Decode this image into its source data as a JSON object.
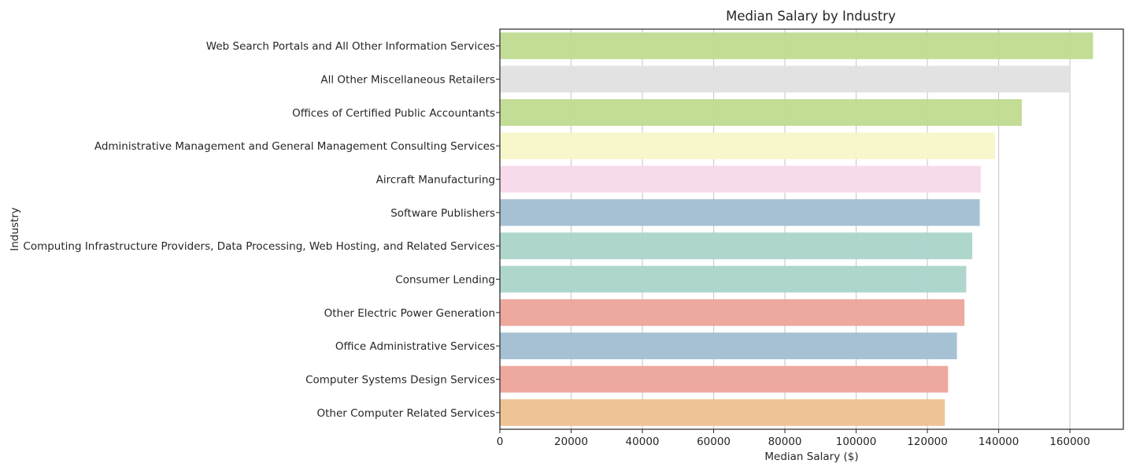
{
  "chart_data": {
    "type": "bar",
    "orientation": "horizontal",
    "title": "Median Salary by Industry",
    "xlabel": "Median Salary ($)",
    "ylabel": "Industry",
    "xlim": [
      0,
      175000
    ],
    "xticks": [
      0,
      20000,
      40000,
      60000,
      80000,
      100000,
      120000,
      140000,
      160000
    ],
    "xtick_labels": [
      "0",
      "20000",
      "40000",
      "60000",
      "80000",
      "100000",
      "120000",
      "140000",
      "160000"
    ],
    "grid": "x",
    "categories": [
      "Web Search Portals and All Other Information Services",
      "All Other Miscellaneous Retailers",
      "Offices of Certified Public Accountants",
      "Administrative Management and General Management Consulting Services",
      "Aircraft Manufacturing",
      "Software Publishers",
      "Computing Infrastructure Providers, Data Processing, Web Hosting, and Related Services",
      "Consumer Lending",
      "Other Electric Power Generation",
      "Office Administrative Services",
      "Computer Systems Design Services",
      "Other Computer Related Services"
    ],
    "values": [
      166500,
      160000,
      146500,
      139000,
      135000,
      134700,
      132600,
      130900,
      130400,
      128300,
      125800,
      124900
    ],
    "colors": [
      "#c0da90",
      "#e0e0e0",
      "#c0da90",
      "#f8f7c8",
      "#f7d9ea",
      "#a1bed2",
      "#aad4ca",
      "#aad4ca",
      "#eda49a",
      "#a1bed2",
      "#eda49a",
      "#edc08f"
    ]
  }
}
